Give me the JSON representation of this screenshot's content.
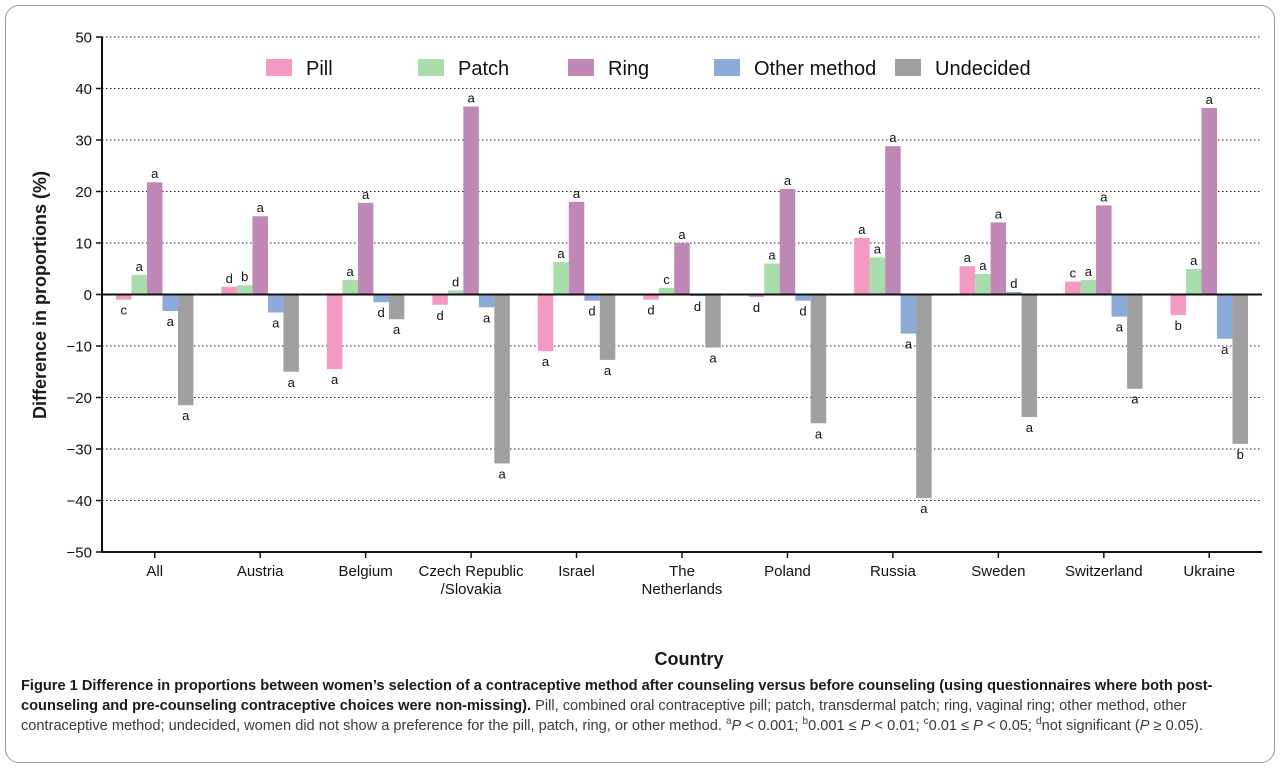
{
  "chart_data": {
    "type": "bar",
    "title": "",
    "xlabel": "Country",
    "ylabel": "Difference in proportions (%)",
    "ylim": [
      -50,
      50
    ],
    "yticks": [
      -50,
      -40,
      -30,
      -20,
      -10,
      0,
      10,
      20,
      30,
      40,
      50
    ],
    "ytick_labels": [
      "−50",
      "−40",
      "−30",
      "−20",
      "−10",
      "0",
      "10",
      "20",
      "30",
      "40",
      "50"
    ],
    "grid": "horizontal dotted",
    "legend_position": "top",
    "categories": [
      [
        "All"
      ],
      [
        "Austria"
      ],
      [
        "Belgium"
      ],
      [
        "Czech Republic",
        "/Slovakia"
      ],
      [
        "Israel"
      ],
      [
        "The",
        "Netherlands"
      ],
      [
        "Poland"
      ],
      [
        "Russia"
      ],
      [
        "Sweden"
      ],
      [
        "Switzerland"
      ],
      [
        "Ukraine"
      ]
    ],
    "series": [
      {
        "name": "Pill",
        "color": "#f59ac3",
        "values": [
          -1,
          1.5,
          -14.5,
          -2,
          -11,
          -1,
          -0.5,
          11,
          5.5,
          2.5,
          -4
        ],
        "labels": [
          "c",
          "d",
          "a",
          "d",
          "a",
          "d",
          "d",
          "a",
          "a",
          "c",
          "b"
        ]
      },
      {
        "name": "Patch",
        "color": "#a9ddab",
        "values": [
          3.8,
          1.8,
          2.8,
          0.8,
          6.3,
          1.3,
          6,
          7.2,
          4,
          2.8,
          5
        ],
        "labels": [
          "a",
          "b",
          "a",
          "d",
          "a",
          "c",
          "a",
          "a",
          "a",
          "a",
          "a"
        ]
      },
      {
        "name": "Ring",
        "color": "#c088b6",
        "values": [
          21.8,
          15.2,
          17.8,
          36.5,
          18,
          10,
          20.5,
          28.8,
          14,
          17.3,
          36.2
        ],
        "labels": [
          "a",
          "a",
          "a",
          "a",
          "a",
          "a",
          "a",
          "a",
          "a",
          "a",
          "a"
        ]
      },
      {
        "name": "Other method",
        "color": "#8cabd8",
        "values": [
          -3.2,
          -3.5,
          -1.5,
          -2.5,
          -1.2,
          -0.3,
          -1.2,
          -7.6,
          0.5,
          -4.3,
          -8.6
        ],
        "labels": [
          "a",
          "a",
          "d",
          "a",
          "d",
          "d",
          "d",
          "a",
          "d",
          "a",
          "a"
        ]
      },
      {
        "name": "Undecided",
        "color": "#a0a0a2",
        "values": [
          -21.5,
          -15,
          -4.8,
          -32.8,
          -12.7,
          -10.3,
          -25,
          -39.5,
          -23.8,
          -18.3,
          -29
        ],
        "labels": [
          "a",
          "a",
          "a",
          "a",
          "a",
          "a",
          "a",
          "a",
          "a",
          "a",
          "b"
        ]
      }
    ]
  },
  "caption": {
    "title": "Figure 1 Difference in proportions between women’s selection of a contraceptive method after counseling versus before counseling (using questionnaires where both post-counseling and pre-counseling contraceptive choices were non-missing).",
    "body": " Pill, combined oral contraceptive pill; patch, transdermal patch; ring, vaginal ring; other method, other contraceptive method; undecided, women did not show a preference for the pill, patch, ring, or other method. ",
    "sup_a": "a",
    "p_label": "P",
    "note_a": " < 0.001; ",
    "sup_b": "b",
    "note_b1": "0.001 ≤ ",
    "note_b2": " < 0.01; ",
    "sup_c": "c",
    "note_c1": "0.01 ≤ ",
    "note_c2": " < 0.05; ",
    "sup_d": "d",
    "note_d1": "not significant (",
    "note_d2": " ≥ 0.05)."
  }
}
